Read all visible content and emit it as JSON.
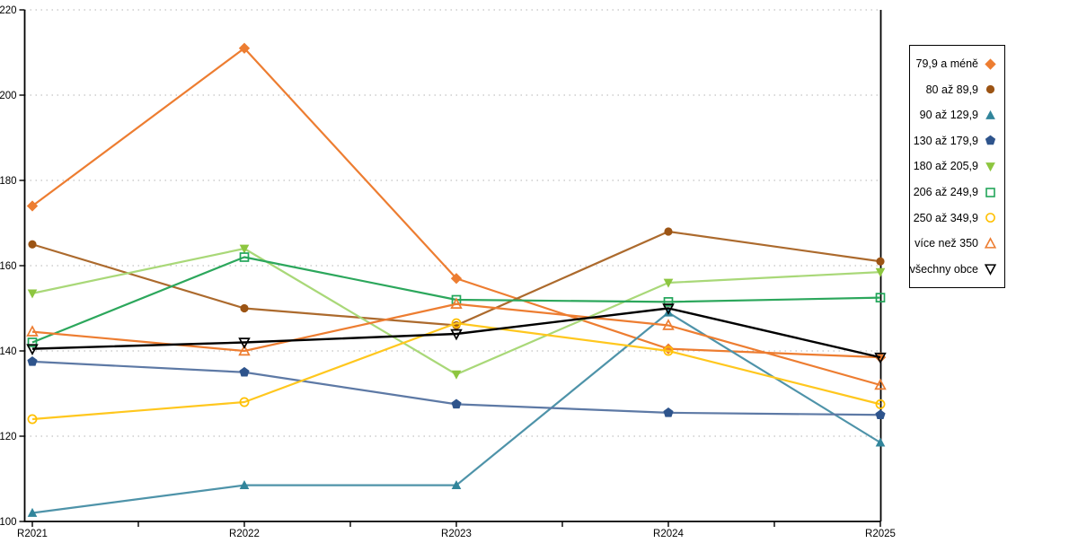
{
  "chart_data": {
    "type": "line",
    "title": "",
    "xlabel": "",
    "ylabel": "",
    "categories": [
      "R2021",
      "R2022",
      "R2023",
      "R2024",
      "R2025"
    ],
    "ylim": [
      100,
      220
    ],
    "ytick_step": 20,
    "y_ticks": [
      100,
      120,
      140,
      160,
      180,
      200,
      220
    ],
    "grid": "horizontal dotted",
    "legend_position": "right outside, boxed",
    "series": [
      {
        "name": "79,9 a méně",
        "marker": "diamond",
        "marker_fill": "filled",
        "color": "#ED7D31",
        "line_color": "#ED7D31",
        "values": [
          174,
          211,
          157,
          140.5,
          138.5
        ]
      },
      {
        "name": "80 až 89,9",
        "marker": "circle",
        "marker_fill": "filled",
        "color": "#9C5414",
        "line_color": "#AC6A2D",
        "values": [
          165,
          150,
          146,
          168,
          161
        ]
      },
      {
        "name": "90 až 129,9",
        "marker": "triangle-up",
        "marker_fill": "filled",
        "color": "#31859B",
        "line_color": "#4E93A9",
        "values": [
          102,
          108.5,
          108.5,
          149,
          118.5
        ]
      },
      {
        "name": "130 až 179,9",
        "marker": "pentagon",
        "marker_fill": "filled",
        "color": "#2E548C",
        "line_color": "#5D79A5",
        "values": [
          137.5,
          135,
          127.5,
          125.5,
          125
        ]
      },
      {
        "name": "180 až 205,9",
        "marker": "triangle-down",
        "marker_fill": "filled",
        "color": "#8DC63F",
        "line_color": "#A9D878",
        "values": [
          153.5,
          164,
          134.5,
          156,
          158.5
        ]
      },
      {
        "name": "206 až 249,9",
        "marker": "square",
        "marker_fill": "hollow",
        "color": "#21A559",
        "line_color": "#2CA75C",
        "values": [
          142,
          162,
          152,
          151.5,
          152.5
        ]
      },
      {
        "name": "250 až 349,9",
        "marker": "circle",
        "marker_fill": "hollow",
        "color": "#FFC000",
        "line_color": "#FFC71E",
        "values": [
          124,
          128,
          146.5,
          140,
          127.5
        ]
      },
      {
        "name": "více než 350",
        "marker": "triangle-up",
        "marker_fill": "hollow",
        "color": "#ED7D31",
        "line_color": "#ED7D31",
        "values": [
          144.5,
          140,
          151,
          146,
          132
        ]
      },
      {
        "name": "všechny obce",
        "marker": "triangle-down",
        "marker_fill": "hollow",
        "color": "#000000",
        "line_color": "#000000",
        "values": [
          140.5,
          142,
          144,
          150,
          138.5
        ]
      }
    ],
    "colors": {
      "background": "#ffffff",
      "gridline": "#b3b3b3",
      "axis": "#000000"
    }
  }
}
